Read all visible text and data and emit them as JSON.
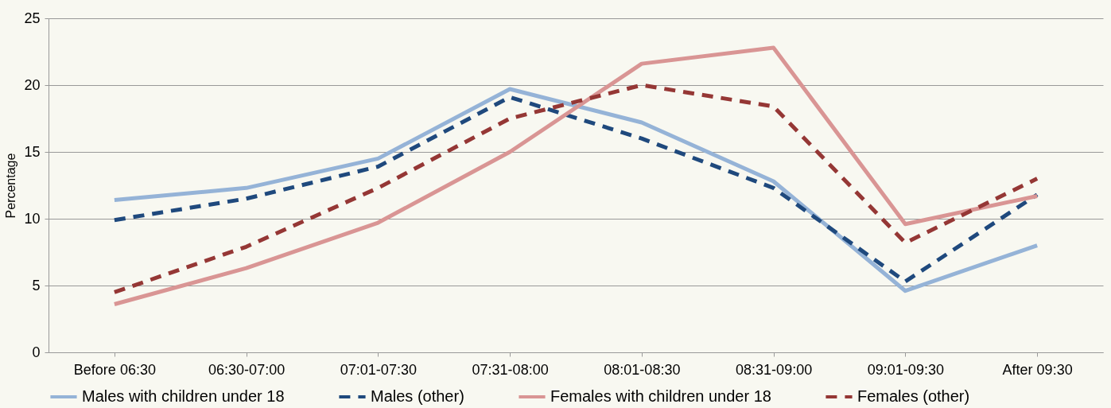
{
  "chart_data": {
    "type": "line",
    "ylabel": "Percentage",
    "categories": [
      "Before 06:30",
      "06:30-07:00",
      "07:01-07:30",
      "07:31-08:00",
      "08:01-08:30",
      "08:31-09:00",
      "09:01-09:30",
      "After 09:30"
    ],
    "series": [
      {
        "name": "Males with children under 18",
        "color": "#95b3d7",
        "line_style": "solid",
        "values": [
          11.4,
          12.3,
          14.5,
          19.7,
          17.2,
          12.8,
          4.6,
          8.0
        ]
      },
      {
        "name": "Males (other)",
        "color": "#1f497d",
        "line_style": "dashed",
        "values": [
          9.9,
          11.5,
          13.9,
          19.1,
          16.0,
          12.3,
          5.3,
          11.8
        ]
      },
      {
        "name": "Females with children under 18",
        "color": "#d99594",
        "line_style": "solid",
        "values": [
          3.6,
          6.3,
          9.7,
          15.0,
          21.6,
          22.8,
          9.6,
          11.7
        ]
      },
      {
        "name": "Females (other)",
        "color": "#953735",
        "line_style": "dashed",
        "values": [
          4.5,
          7.9,
          12.3,
          17.5,
          20.0,
          18.4,
          8.2,
          13.0
        ]
      }
    ],
    "ylim": [
      0,
      25
    ],
    "yticks": [
      0,
      5,
      10,
      15,
      20,
      25
    ],
    "grid": "y",
    "legend": "bottom"
  }
}
